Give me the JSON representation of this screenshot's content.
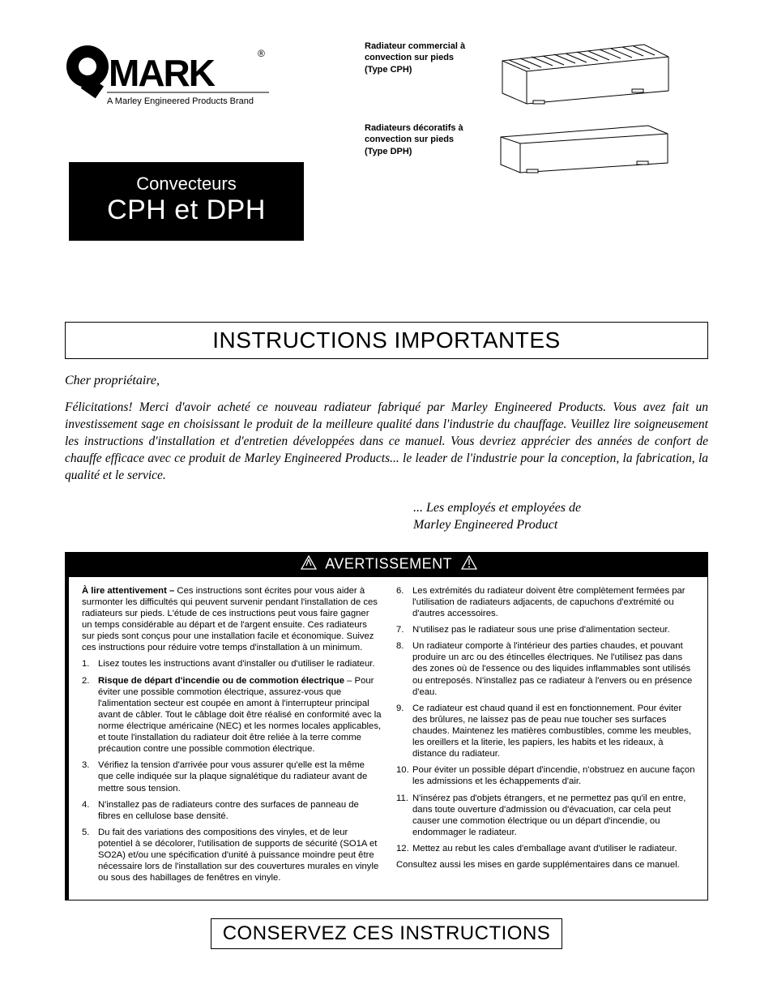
{
  "logo": {
    "brand": "QMARK",
    "tagline": "A Marley Engineered Products Brand",
    "registered": "®",
    "colors": {
      "black": "#000000",
      "white": "#ffffff"
    }
  },
  "titleBox": {
    "subtitle": "Convecteurs",
    "title": "CPH et DPH",
    "bg": "#000000",
    "fg": "#ffffff"
  },
  "products": {
    "cph": {
      "label": "Radiateur commercial à convection sur pieds\n(Type CPH)"
    },
    "dph": {
      "label": "Radiateurs décoratifs à convection sur pieds\n(Type DPH)"
    }
  },
  "instructionsTitle": "INSTRUCTIONS IMPORTANTES",
  "salutation": "Cher propriétaire,",
  "intro": "Félicitations! Merci d'avoir acheté ce nouveau radiateur fabriqué par Marley Engineered Products. Vous avez fait un investissement sage en choisissant le produit de la meilleure qualité dans l'industrie du chauffage. Veuillez lire soigneusement les instructions d'installation et d'entretien développées dans ce manuel. Vous devriez apprécier des années de confort de chauffe efficace avec ce produit de Marley Engineered Products... le leader de l'industrie pour la conception, la fabrication, la qualité et le service.",
  "signoff": "... Les employés et employées de\nMarley Engineered Product",
  "warning": {
    "barText": "AVERTISSEMENT",
    "leadBold": "À lire attentivement –",
    "leadText": " Ces instructions sont écrites pour vous aider à surmonter les difficultés qui peuvent survenir pendant l'installation de ces radiateurs sur pieds. L'étude de ces instructions peut vous faire gagner un temps considérable au départ et de l'argent ensuite. Ces radiateurs sur pieds sont conçus pour une installation facile et économique. Suivez ces instructions pour réduire votre temps d'installation à un minimum.",
    "left": [
      {
        "n": "1.",
        "t": "Lisez toutes les instructions avant d'installer ou d'utiliser le radiateur."
      },
      {
        "n": "2.",
        "bold": "Risque de départ d'incendie ou de commotion électrique",
        "t": " – Pour éviter une possible commotion électrique, assurez-vous que l'alimentation secteur est coupée en amont à l'interrupteur principal avant de câbler. Tout le câblage doit être réalisé en conformité avec la norme électrique américaine (NEC) et les normes locales applicables, et toute l'installation du radiateur doit être reliée à la terre comme précaution contre une possible commotion électrique."
      },
      {
        "n": "3.",
        "t": "Vérifiez la tension d'arrivée pour vous assurer qu'elle est la même que celle indiquée sur la plaque signalétique du radiateur avant de mettre sous tension."
      },
      {
        "n": "4.",
        "t": "N'installez pas de radiateurs contre des surfaces de panneau de fibres en cellulose base densité."
      },
      {
        "n": "5.",
        "t": "Du fait des variations des compositions des vinyles, et de leur potentiel à se décolorer, l'utilisation de supports de sécurité (SO1A et SO2A) et/ou une spécification d'unité à puissance moindre peut être nécessaire lors de l'installation sur des couvertures murales en vinyle ou sous des habillages de fenêtres en vinyle."
      }
    ],
    "right": [
      {
        "n": "6.",
        "t": "Les extrémités du radiateur doivent être complètement fermées par l'utilisation de radiateurs adjacents, de capuchons d'extrémité ou d'autres accessoires."
      },
      {
        "n": "7.",
        "t": "N'utilisez pas le radiateur sous une prise d'alimentation secteur."
      },
      {
        "n": "8.",
        "t": "Un radiateur comporte à l'intérieur des parties chaudes, et pouvant produire un arc ou des étincelles électriques. Ne l'utilisez pas dans des zones où de l'essence ou des liquides inflammables sont utilisés ou entreposés. N'installez pas ce radiateur à l'envers ou en présence d'eau."
      },
      {
        "n": "9.",
        "t": "Ce radiateur est chaud quand il est en fonctionnement. Pour éviter des brûlures, ne laissez pas de peau nue toucher ses surfaces chaudes. Maintenez les matières combustibles, comme les meubles, les oreillers et la literie, les papiers, les habits et les rideaux, à distance du radiateur."
      },
      {
        "n": "10.",
        "t": "Pour éviter un possible départ d'incendie, n'obstruez en aucune façon les admissions et les échappements d'air."
      },
      {
        "n": "11.",
        "t": "N'insérez pas d'objets étrangers, et ne permettez pas qu'il en entre, dans toute ouverture d'admission ou d'évacuation, car cela peut causer une commotion électrique ou un départ d'incendie, ou endommager le radiateur."
      },
      {
        "n": "12.",
        "t": "Mettez au rebut les cales d'emballage avant d'utiliser le radiateur."
      }
    ],
    "tail": "Consultez aussi les mises en garde supplémentaires dans ce manuel."
  },
  "footerTitle": "CONSERVEZ CES INSTRUCTIONS",
  "drawings": {
    "cph": {
      "slats": 12,
      "stroke": "#000000",
      "fill": "#ffffff"
    },
    "dph": {
      "stroke": "#000000",
      "fill": "#ffffff"
    }
  }
}
